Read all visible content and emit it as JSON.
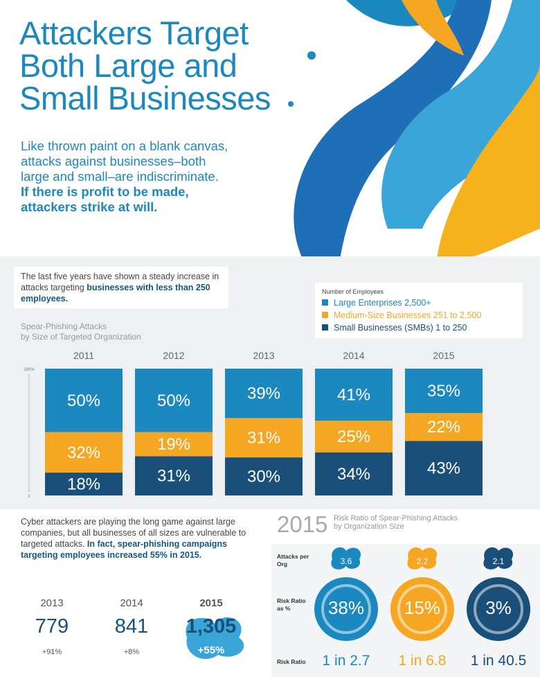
{
  "title": [
    "Attackers Target",
    "Both Large and",
    "Small Businesses"
  ],
  "intro": {
    "text": "Like thrown paint on a blank canvas, attacks against businesses–both large and small–are indiscriminate.",
    "bold": "If there is profit to be made, attackers strike at will."
  },
  "note": {
    "text": "The last five years have shown a steady increase in attacks targeting",
    "bold": "businesses with less than 250 employees."
  },
  "legend_title": "Number of Employees",
  "chart_data": {
    "type": "bar",
    "stacked": true,
    "title": [
      "Spear-Phishing Attacks",
      "by Size of Targeted Organization"
    ],
    "categories": [
      "2011",
      "2012",
      "2013",
      "2014",
      "2015"
    ],
    "series": [
      {
        "name": "Large Enterprises 2,500+",
        "color": "#1b88c0",
        "values": [
          50,
          50,
          39,
          41,
          35
        ],
        "value_labels": [
          "50%",
          "50%",
          "39%",
          "41%",
          "35%"
        ]
      },
      {
        "name": "Medium-Size Businesses 251 to 2,500",
        "color": "#f5a623",
        "values": [
          32,
          19,
          31,
          25,
          22
        ],
        "value_labels": [
          "32%",
          "19%",
          "31%",
          "25%",
          "22%"
        ]
      },
      {
        "name": "Small Businesses (SMBs) 1 to 250",
        "color": "#1a4f7a",
        "values": [
          18,
          31,
          30,
          34,
          43
        ],
        "value_labels": [
          "18%",
          "31%",
          "30%",
          "34%",
          "43%"
        ]
      }
    ],
    "ylim": [
      0,
      100
    ],
    "yticks": [
      0,
      {
        "value": 100,
        "label": "100%"
      }
    ]
  },
  "growth": {
    "text": "Cyber attackers are playing the long game against large companies, but all businesses of all sizes are vulnerable to targeted attacks.",
    "bold": "In fact, spear-phishing campaigns targeting employees increased 55% in 2015.",
    "items": [
      {
        "year": "2013",
        "value": "779",
        "change": "+91%"
      },
      {
        "year": "2014",
        "value": "841",
        "change": "+8%"
      },
      {
        "year": "2015",
        "value": "1,305",
        "change": "+55%"
      }
    ]
  },
  "risk": {
    "year": "2015",
    "title": [
      "Risk Ratio of Spear-Phishing Attacks",
      "by Organization Size"
    ],
    "row_labels": [
      "Attacks per Org",
      "Risk Ratio as %",
      "Risk Ratio"
    ],
    "columns": [
      {
        "attacks": "3.6",
        "percent": "38%",
        "ratio": "1 in 2.7"
      },
      {
        "attacks": "2.2",
        "percent": "15%",
        "ratio": "1 in 6.8"
      },
      {
        "attacks": "2.1",
        "percent": "3%",
        "ratio": "1 in 40.5"
      }
    ]
  }
}
